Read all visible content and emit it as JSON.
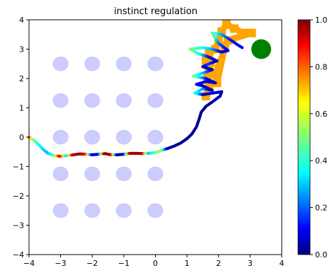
{
  "chart_data": {
    "type": "scatter",
    "title": "instinct regulation",
    "xlabel": "",
    "ylabel": "",
    "xlim": [
      -4,
      4
    ],
    "ylim": [
      -4,
      4
    ],
    "xticks": [
      "−4",
      "−3",
      "−2",
      "−1",
      "0",
      "1",
      "2",
      "3",
      "4"
    ],
    "yticks": [
      "−4",
      "−3",
      "−2",
      "−1",
      "0",
      "1",
      "2",
      "3",
      "4"
    ],
    "grid": false,
    "colorbar": {
      "min": 0.0,
      "max": 1.0,
      "ticks": [
        "0.0",
        "0.2",
        "0.4",
        "0.6",
        "0.8",
        "1.0"
      ],
      "colormap": "jet"
    },
    "obstacles": {
      "color": "#ccccff",
      "centers": [
        [
          -3,
          2.5
        ],
        [
          -2,
          2.5
        ],
        [
          -1,
          2.5
        ],
        [
          0,
          2.5
        ],
        [
          -3,
          1.25
        ],
        [
          -2,
          1.25
        ],
        [
          -1,
          1.25
        ],
        [
          0,
          1.25
        ],
        [
          -3,
          0
        ],
        [
          -2,
          0
        ],
        [
          -1,
          0
        ],
        [
          0,
          0
        ],
        [
          -3,
          -1.25
        ],
        [
          -2,
          -1.25
        ],
        [
          -1,
          -1.25
        ],
        [
          0,
          -1.25
        ],
        [
          -3,
          -2.5
        ],
        [
          -2,
          -2.5
        ],
        [
          -1,
          -2.5
        ],
        [
          0,
          -2.5
        ]
      ],
      "radius": 0.25
    },
    "goal": {
      "x": 3.35,
      "y": 3.0,
      "color": "#008000"
    },
    "trajectory": [
      {
        "x": -4.0,
        "y": 0.0,
        "v": 0.85
      },
      {
        "x": -3.85,
        "y": -0.1,
        "v": 0.5
      },
      {
        "x": -3.7,
        "y": -0.25,
        "v": 0.4
      },
      {
        "x": -3.55,
        "y": -0.42,
        "v": 0.35
      },
      {
        "x": -3.4,
        "y": -0.55,
        "v": 0.3
      },
      {
        "x": -3.2,
        "y": -0.63,
        "v": 0.45
      },
      {
        "x": -3.0,
        "y": -0.65,
        "v": 0.95
      },
      {
        "x": -2.8,
        "y": -0.63,
        "v": 0.3
      },
      {
        "x": -2.6,
        "y": -0.6,
        "v": 0.95
      },
      {
        "x": -2.4,
        "y": -0.57,
        "v": 0.98
      },
      {
        "x": -2.2,
        "y": -0.58,
        "v": 0.9
      },
      {
        "x": -2.0,
        "y": -0.6,
        "v": 0.1
      },
      {
        "x": -1.8,
        "y": -0.58,
        "v": 0.05
      },
      {
        "x": -1.6,
        "y": -0.56,
        "v": 0.98
      },
      {
        "x": -1.4,
        "y": -0.6,
        "v": 0.98
      },
      {
        "x": -1.2,
        "y": -0.6,
        "v": 0.05
      },
      {
        "x": -1.0,
        "y": -0.58,
        "v": 0.03
      },
      {
        "x": -0.8,
        "y": -0.55,
        "v": 0.95
      },
      {
        "x": -0.6,
        "y": -0.55,
        "v": 0.98
      },
      {
        "x": -0.4,
        "y": -0.56,
        "v": 0.95
      },
      {
        "x": -0.2,
        "y": -0.55,
        "v": 0.3
      },
      {
        "x": 0.0,
        "y": -0.52,
        "v": 0.45
      },
      {
        "x": 0.2,
        "y": -0.45,
        "v": 0.55
      },
      {
        "x": 0.4,
        "y": -0.38,
        "v": 0.05
      },
      {
        "x": 0.6,
        "y": -0.3,
        "v": 0.03
      },
      {
        "x": 0.8,
        "y": -0.2,
        "v": 0.02
      },
      {
        "x": 1.0,
        "y": -0.05,
        "v": 0.02
      },
      {
        "x": 1.15,
        "y": 0.1,
        "v": 0.02
      },
      {
        "x": 1.3,
        "y": 0.35,
        "v": 0.02
      },
      {
        "x": 1.38,
        "y": 0.6,
        "v": 0.02
      },
      {
        "x": 1.45,
        "y": 0.85,
        "v": 0.02
      },
      {
        "x": 1.6,
        "y": 1.05,
        "v": 0.02
      },
      {
        "x": 1.8,
        "y": 1.2,
        "v": 0.03
      },
      {
        "x": 2.05,
        "y": 1.4,
        "v": 0.05
      },
      {
        "x": 2.1,
        "y": 1.55,
        "v": 0.03
      },
      {
        "x": 1.8,
        "y": 1.5,
        "v": 0.1
      },
      {
        "x": 1.5,
        "y": 1.45,
        "v": 0.05
      },
      {
        "x": 1.25,
        "y": 1.5,
        "v": 0.4
      },
      {
        "x": 1.5,
        "y": 1.65,
        "v": 0.3
      },
      {
        "x": 1.8,
        "y": 1.6,
        "v": 0.05
      },
      {
        "x": 1.5,
        "y": 1.75,
        "v": 0.05
      },
      {
        "x": 1.3,
        "y": 1.8,
        "v": 0.1
      },
      {
        "x": 1.6,
        "y": 1.9,
        "v": 0.1
      },
      {
        "x": 1.9,
        "y": 1.85,
        "v": 0.05
      },
      {
        "x": 1.6,
        "y": 2.0,
        "v": 0.1
      },
      {
        "x": 1.2,
        "y": 2.08,
        "v": 0.5
      },
      {
        "x": 1.55,
        "y": 2.2,
        "v": 0.3
      },
      {
        "x": 1.8,
        "y": 2.3,
        "v": 0.1
      },
      {
        "x": 1.5,
        "y": 2.4,
        "v": 0.05
      },
      {
        "x": 1.7,
        "y": 2.5,
        "v": 0.2
      },
      {
        "x": 1.95,
        "y": 2.6,
        "v": 0.05
      },
      {
        "x": 1.65,
        "y": 2.75,
        "v": 0.1
      },
      {
        "x": 1.35,
        "y": 2.85,
        "v": 0.4
      },
      {
        "x": 1.1,
        "y": 3.0,
        "v": 0.5
      },
      {
        "x": 1.5,
        "y": 3.05,
        "v": 0.4
      },
      {
        "x": 1.8,
        "y": 3.0,
        "v": 0.3
      },
      {
        "x": 2.1,
        "y": 2.9,
        "v": 0.1
      },
      {
        "x": 2.3,
        "y": 2.95,
        "v": 0.1
      },
      {
        "x": 2.0,
        "y": 3.2,
        "v": 0.2
      },
      {
        "x": 1.8,
        "y": 3.55,
        "v": 0.5
      },
      {
        "x": 2.1,
        "y": 3.5,
        "v": 0.3
      },
      {
        "x": 2.4,
        "y": 3.3,
        "v": 0.15
      },
      {
        "x": 2.6,
        "y": 3.15,
        "v": 0.1
      },
      {
        "x": 2.75,
        "y": 3.05,
        "v": 0.1
      }
    ],
    "strong_segments": {
      "color": "#ffa500",
      "points": [
        {
          "x": 1.6,
          "y": 1.4
        },
        {
          "x": 1.7,
          "y": 1.7
        },
        {
          "x": 1.65,
          "y": 2.0
        },
        {
          "x": 1.7,
          "y": 2.3
        },
        {
          "x": 1.75,
          "y": 2.55
        },
        {
          "x": 1.6,
          "y": 2.6
        },
        {
          "x": 1.7,
          "y": 2.85
        },
        {
          "x": 1.9,
          "y": 3.0
        },
        {
          "x": 2.0,
          "y": 3.3
        },
        {
          "x": 2.1,
          "y": 3.6
        },
        {
          "x": 2.25,
          "y": 3.85
        },
        {
          "x": 2.5,
          "y": 3.7
        },
        {
          "x": 2.8,
          "y": 3.55
        },
        {
          "x": 3.05,
          "y": 3.55
        },
        {
          "x": 2.3,
          "y": 3.3
        },
        {
          "x": 1.9,
          "y": 2.15
        },
        {
          "x": 1.95,
          "y": 1.85
        },
        {
          "x": 2.2,
          "y": 3.1
        }
      ]
    }
  }
}
